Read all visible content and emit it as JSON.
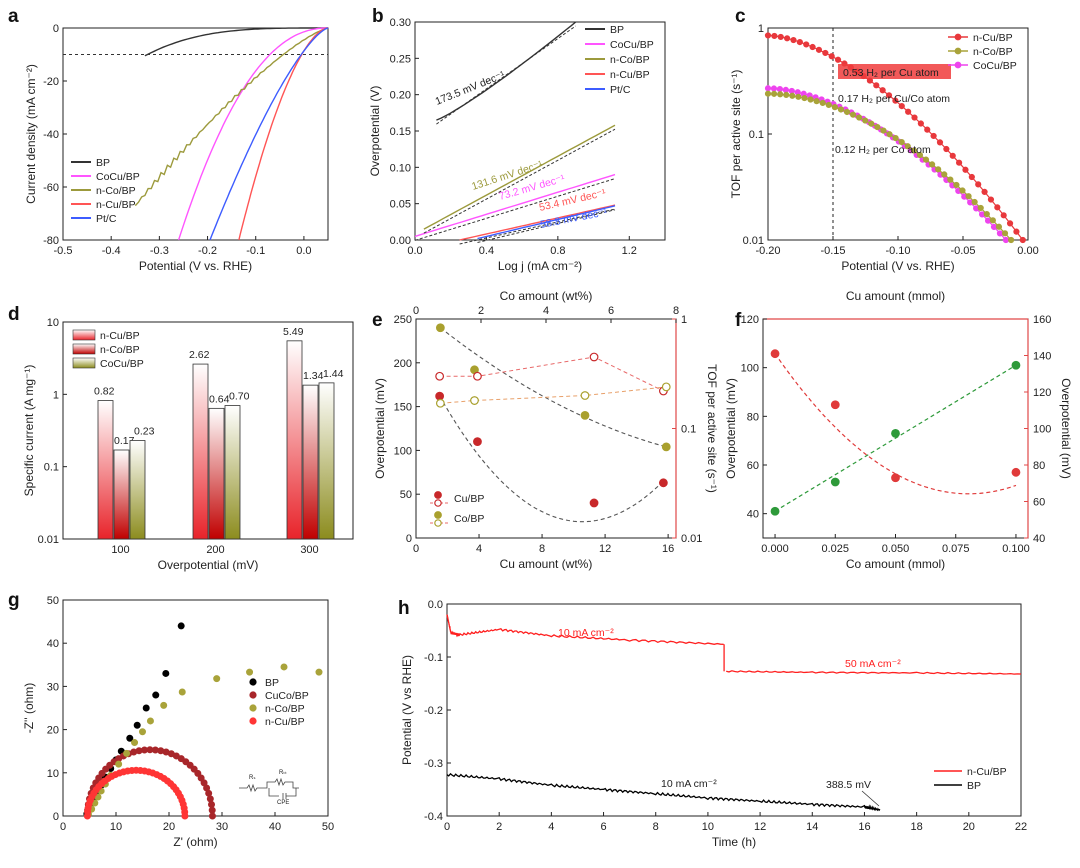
{
  "panels": {
    "a": {
      "label": "a",
      "xlabel": "Potential (V vs. RHE)",
      "ylabel": "Current density (mA cm⁻²)",
      "xlim": [
        -0.5,
        0.05
      ],
      "ylim": [
        -80,
        0
      ],
      "xticks": [
        -0.5,
        -0.4,
        -0.3,
        -0.2,
        -0.1,
        0.0
      ],
      "yticks": [
        0,
        -20,
        -40,
        -60,
        -80
      ],
      "ref_line_y": -10,
      "legend": [
        "BP",
        "CoCu/BP",
        "n-Co/BP",
        "n-Cu/BP",
        "Pt/C"
      ],
      "colors": [
        "#333333",
        "#ff55ff",
        "#9c9a3c",
        "#ff5555",
        "#3d5cff"
      ],
      "onset": [
        -0.33,
        -0.26,
        -0.33,
        -0.135,
        -0.195
      ],
      "end_potential": [
        -0.33,
        -0.26,
        -0.35,
        -0.135,
        -0.195
      ]
    },
    "b": {
      "label": "b",
      "xlabel": "Log j (mA cm⁻²)",
      "ylabel": "Overpotential (V)",
      "xlim": [
        0,
        1.4
      ],
      "ylim": [
        0,
        0.3
      ],
      "xticks": [
        0.0,
        0.4,
        0.8,
        1.2
      ],
      "yticks": [
        0.0,
        0.05,
        0.1,
        0.15,
        0.2,
        0.25,
        0.3
      ],
      "legend": [
        "BP",
        "CoCu/BP",
        "n-Co/BP",
        "n-Cu/BP",
        "Pt/C"
      ],
      "colors": [
        "#333333",
        "#ff55ff",
        "#9c9a3c",
        "#ff5555",
        "#3d5cff"
      ],
      "tafel": [
        {
          "name": "BP",
          "slope_label": "173.5 mV dec⁻¹",
          "x": [
            0.12,
            0.9
          ],
          "y": [
            0.165,
            0.3
          ]
        },
        {
          "name": "CoCu/BP",
          "slope_label": "73.2 mV dec⁻¹",
          "x": [
            0.0,
            1.12
          ],
          "y": [
            0.005,
            0.09
          ]
        },
        {
          "name": "n-Co/BP",
          "slope_label": "131.6 mV dec⁻¹",
          "x": [
            0.05,
            1.12
          ],
          "y": [
            0.015,
            0.158
          ]
        },
        {
          "name": "n-Cu/BP",
          "slope_label": "53.4 mV dec⁻¹",
          "x": [
            0.25,
            1.12
          ],
          "y": [
            0.0,
            0.048
          ]
        },
        {
          "name": "Pt/C",
          "slope_label": "58.8 mV dec⁻¹",
          "x": [
            0.35,
            1.12
          ],
          "y": [
            0.002,
            0.047
          ]
        }
      ]
    },
    "c": {
      "label": "c",
      "xlabel": "Potential (V vs. RHE)",
      "ylabel": "TOF per active site (s⁻¹)",
      "xlim": [
        -0.2,
        0.0
      ],
      "ylim_log": [
        0.01,
        1
      ],
      "xticks": [
        -0.2,
        -0.15,
        -0.1,
        -0.05,
        0.0
      ],
      "yticks": [
        1,
        0.1,
        0.01
      ],
      "ref_line_x": -0.15,
      "legend": [
        "n-Cu/BP",
        "n-Co/BP",
        "CoCu/BP"
      ],
      "colors": [
        "#e8383c",
        "#a9a33a",
        "#ee44ee"
      ],
      "annotations": [
        "0.53 H₂ per Cu atom",
        "0.17 H₂ per Cu/Co atom",
        "0.12 H₂ per Co atom"
      ],
      "series": [
        {
          "name": "n-Cu/BP",
          "start": 0.85,
          "x_end": -0.004,
          "y_end": 0.01,
          "shape": 0.55
        },
        {
          "name": "CoCu/BP",
          "start": 0.27,
          "x_end": -0.017,
          "y_end": 0.01,
          "shape": 0.45
        },
        {
          "name": "n-Co/BP",
          "start": 0.24,
          "x_end": -0.013,
          "y_end": 0.01,
          "shape": 0.35
        }
      ]
    },
    "d": {
      "label": "d",
      "xlabel": "Overpotential (mV)",
      "ylabel": "Specific current (A mg⁻¹)",
      "ylim_log": [
        0.01,
        10
      ],
      "yticks": [
        10,
        1,
        0.1,
        0.01
      ],
      "categories": [
        "100",
        "200",
        "300"
      ],
      "legend": [
        "n-Cu/BP",
        "n-Co/BP",
        "CoCu/BP"
      ],
      "colors": [
        "#e8232a",
        "#c00000",
        "#8c8c1e"
      ],
      "series": [
        {
          "name": "n-Cu/BP",
          "values": [
            0.82,
            2.62,
            5.49
          ],
          "labels": [
            "0.82",
            "2.62",
            "5.49"
          ]
        },
        {
          "name": "n-Co/BP",
          "values": [
            0.17,
            0.64,
            1.34
          ],
          "labels": [
            "0.17",
            "0.64",
            "1.34"
          ]
        },
        {
          "name": "CoCu/BP",
          "values": [
            0.23,
            0.7,
            1.44
          ],
          "labels": [
            "0.23",
            "0.70",
            "1.44"
          ]
        }
      ]
    },
    "e": {
      "label": "e",
      "xlabel": "Cu amount (wt%)",
      "xlabel_top": "Co amount (wt%)",
      "ylabel": "Overpotential (mV)",
      "ylabel_right": "TOF per active site (s⁻¹)",
      "xlim": [
        0,
        16.5
      ],
      "ylim": [
        0,
        250
      ],
      "xlim_top": [
        0,
        8
      ],
      "ylim_right_log": [
        0.01,
        1
      ],
      "xticks": [
        0,
        4,
        8,
        12,
        16
      ],
      "xticks_top": [
        0,
        2,
        4,
        6,
        8
      ],
      "yticks": [
        0,
        50,
        100,
        150,
        200,
        250
      ],
      "yticks_right": [
        1,
        0.1,
        0.01
      ],
      "legend": [
        "Cu/BP",
        "Co/BP"
      ],
      "colors": [
        "#c8282a",
        "#a9a02e"
      ],
      "cu_overpotential": {
        "x": [
          1.5,
          3.9,
          11.3,
          15.7
        ],
        "y": [
          162,
          110,
          40,
          63
        ]
      },
      "cu_tof": {
        "x": [
          1.5,
          3.9,
          11.3,
          15.7
        ],
        "y": [
          0.3,
          0.3,
          0.45,
          0.22
        ]
      },
      "co_overpotential": {
        "x": [
          0.75,
          1.8,
          5.2,
          7.7
        ],
        "y": [
          240,
          192,
          140,
          104
        ]
      },
      "co_tof": {
        "x": [
          0.75,
          1.8,
          5.2,
          7.7
        ],
        "y": [
          0.17,
          0.18,
          0.2,
          0.24
        ]
      }
    },
    "f": {
      "label": "f",
      "xlabel": "Co amount (mmol)",
      "xlabel_top": "Cu amount (mmol)",
      "ylabel": "Overpotential (mV)",
      "ylabel_right": "Overpotential (mV)",
      "xlim": [
        -0.005,
        0.105
      ],
      "ylim": [
        30,
        120
      ],
      "ylim_right": [
        40,
        160
      ],
      "xticks": [
        0.0,
        0.025,
        0.05,
        0.075,
        0.1
      ],
      "xtick_labels": [
        "0.000",
        "0.025",
        "0.050",
        "0.075",
        "0.100"
      ],
      "yticks": [
        40,
        60,
        80,
        100,
        120
      ],
      "yticks_right": [
        40,
        60,
        80,
        100,
        120,
        140,
        160
      ],
      "colors": [
        "#2e9a3a",
        "#e03a3a"
      ],
      "co_series": {
        "x": [
          0.0,
          0.025,
          0.05,
          0.1
        ],
        "y": [
          41,
          53,
          73,
          101
        ]
      },
      "cu_series": {
        "x": [
          0.0,
          0.025,
          0.05,
          0.1
        ],
        "y": [
          141,
          113,
          73,
          76
        ]
      }
    },
    "g": {
      "label": "g",
      "xlabel": "Z' (ohm)",
      "ylabel": "-Z'' (ohm)",
      "xlim": [
        0,
        50
      ],
      "ylim": [
        0,
        50
      ],
      "xticks": [
        0,
        10,
        20,
        30,
        40,
        50
      ],
      "yticks": [
        0,
        10,
        20,
        30,
        40,
        50
      ],
      "legend": [
        "BP",
        "CuCo/BP",
        "n-Co/BP",
        "n-Cu/BP"
      ],
      "colors": [
        "#000000",
        "#a8262a",
        "#a9a33a",
        "#ff3535"
      ],
      "circuit_labels": [
        "Rₛ",
        "Rₜₜ",
        "CPE"
      ],
      "series": [
        {
          "name": "BP",
          "x": [
            4.5,
            5.2,
            5.8,
            6.3,
            6.8,
            7.3,
            8.0,
            9.0,
            10.0,
            11.0,
            12.6,
            14.0,
            15.7,
            17.5,
            19.4,
            22.3
          ],
          "y": [
            0.5,
            1.8,
            3.2,
            4.6,
            6.0,
            7.2,
            9.0,
            11.0,
            13.0,
            15.0,
            18.0,
            21.0,
            25.0,
            28.0,
            33.0,
            44.0
          ]
        },
        {
          "name": "CuCo/BP",
          "center": 16.4,
          "radius": 11.8,
          "min_x": 4.6
        },
        {
          "name": "n-Co/BP",
          "x": [
            4.8,
            5.4,
            6.0,
            6.6,
            7.2,
            8.0,
            9.0,
            10.5,
            12.0,
            13.5,
            15.0,
            16.5,
            19.0,
            22.5,
            29.0,
            35.2,
            41.7,
            48.3
          ],
          "y": [
            0.4,
            1.6,
            3.0,
            4.4,
            5.8,
            7.4,
            9.4,
            12.0,
            14.5,
            17.0,
            19.5,
            22.0,
            25.6,
            28.7,
            31.8,
            33.3,
            34.5,
            33.3
          ]
        },
        {
          "name": "n-Cu/BP",
          "center": 13.8,
          "radius": 9.2,
          "min_x": 4.6
        }
      ]
    },
    "h": {
      "label": "h",
      "xlabel": "Time (h)",
      "ylabel": "Potential (V vs RHE)",
      "xlim": [
        0,
        22
      ],
      "ylim": [
        -0.4,
        0.0
      ],
      "xticks": [
        0,
        2,
        4,
        6,
        8,
        10,
        12,
        14,
        16,
        18,
        20,
        22
      ],
      "yticks": [
        0.0,
        -0.1,
        -0.2,
        -0.3,
        -0.4
      ],
      "yticklabels": [
        "0.0",
        "-0.1",
        "-0.2",
        "-0.3",
        "-0.4"
      ],
      "legend": [
        "n-Cu/BP",
        "BP"
      ],
      "colors": [
        "#ff1f1f",
        "#000000"
      ],
      "annotations": [
        "10 mA cm⁻²",
        "50 mA cm⁻²",
        "10 mA cm⁻²",
        "388.5 mV"
      ],
      "ncu_segments": [
        {
          "t": [
            0,
            0.15,
            0.5,
            2.0,
            4.0,
            7.0,
            10.6
          ],
          "v": [
            -0.02,
            -0.055,
            -0.058,
            -0.048,
            -0.06,
            -0.068,
            -0.076
          ]
        },
        {
          "t": [
            10.7,
            14.0,
            18.0,
            22.0
          ],
          "v": [
            -0.127,
            -0.129,
            -0.13,
            -0.132
          ]
        }
      ],
      "bp_series": {
        "t": [
          0,
          2,
          4,
          6,
          8,
          10,
          12,
          14,
          16,
          16.6
        ],
        "v": [
          -0.322,
          -0.33,
          -0.342,
          -0.35,
          -0.358,
          -0.366,
          -0.372,
          -0.378,
          -0.383,
          -0.3885
        ]
      }
    }
  }
}
